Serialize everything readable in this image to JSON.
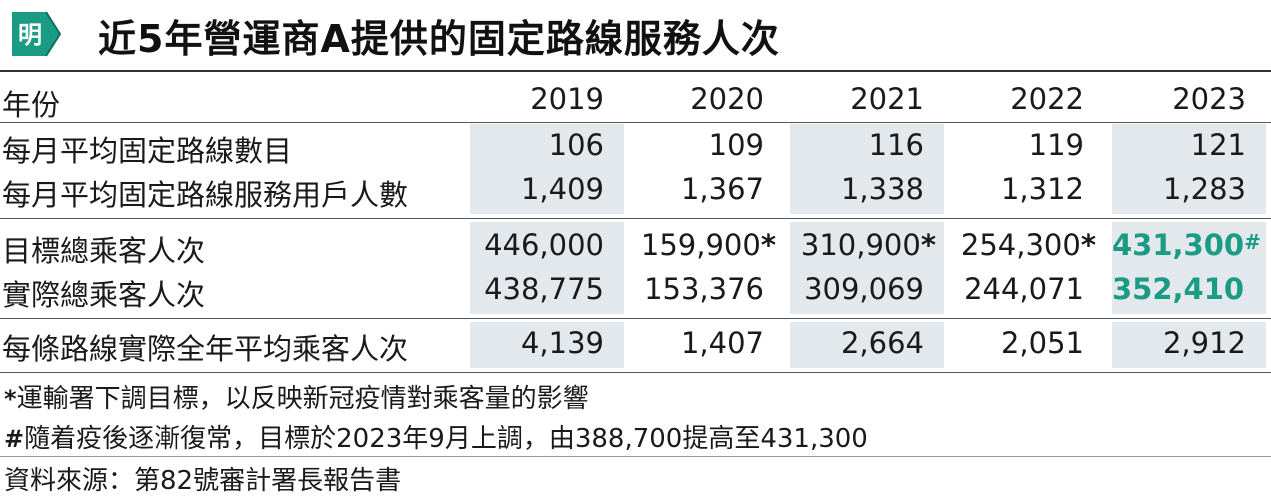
{
  "title": "近5年營運商A提供的固定路線服務人次",
  "logo_text": "明",
  "colors": {
    "accent_green": "#1a9b84",
    "shade": "#e3e8ec"
  },
  "header": {
    "label": "年份",
    "years": [
      "2019",
      "2020",
      "2021",
      "2022",
      "2023"
    ]
  },
  "rows": [
    {
      "label": "每月平均固定路線數目",
      "values": [
        "106",
        "109",
        "116",
        "119",
        "121"
      ],
      "marks": [
        "",
        "",
        "",
        "",
        ""
      ]
    },
    {
      "label": "每月平均固定路線服務用戶人數",
      "values": [
        "1,409",
        "1,367",
        "1,338",
        "1,312",
        "1,283"
      ],
      "marks": [
        "",
        "",
        "",
        "",
        ""
      ]
    },
    {
      "label": "目標總乘客人次",
      "values": [
        "446,000",
        "159,900",
        "310,900",
        "254,300",
        "431,300"
      ],
      "marks": [
        "",
        "*",
        "*",
        "*",
        "#"
      ]
    },
    {
      "label": "實際總乘客人次",
      "values": [
        "438,775",
        "153,376",
        "309,069",
        "244,071",
        "352,410"
      ],
      "marks": [
        "",
        "",
        "",
        "",
        ""
      ]
    },
    {
      "label": "每條路線實際全年平均乘客人次",
      "values": [
        "4,139",
        "1,407",
        "2,664",
        "2,051",
        "2,912"
      ],
      "marks": [
        "",
        "",
        "",
        "",
        ""
      ]
    }
  ],
  "notes": [
    {
      "mark": "*",
      "text": "運輸署下調目標，以反映新冠疫情對乘客量的影響"
    },
    {
      "mark": "#",
      "text": "隨着疫後逐漸復常，目標於2023年9月上調，由388,700提高至431,300"
    }
  ],
  "source": "資料來源：第82號審計署長報告書"
}
